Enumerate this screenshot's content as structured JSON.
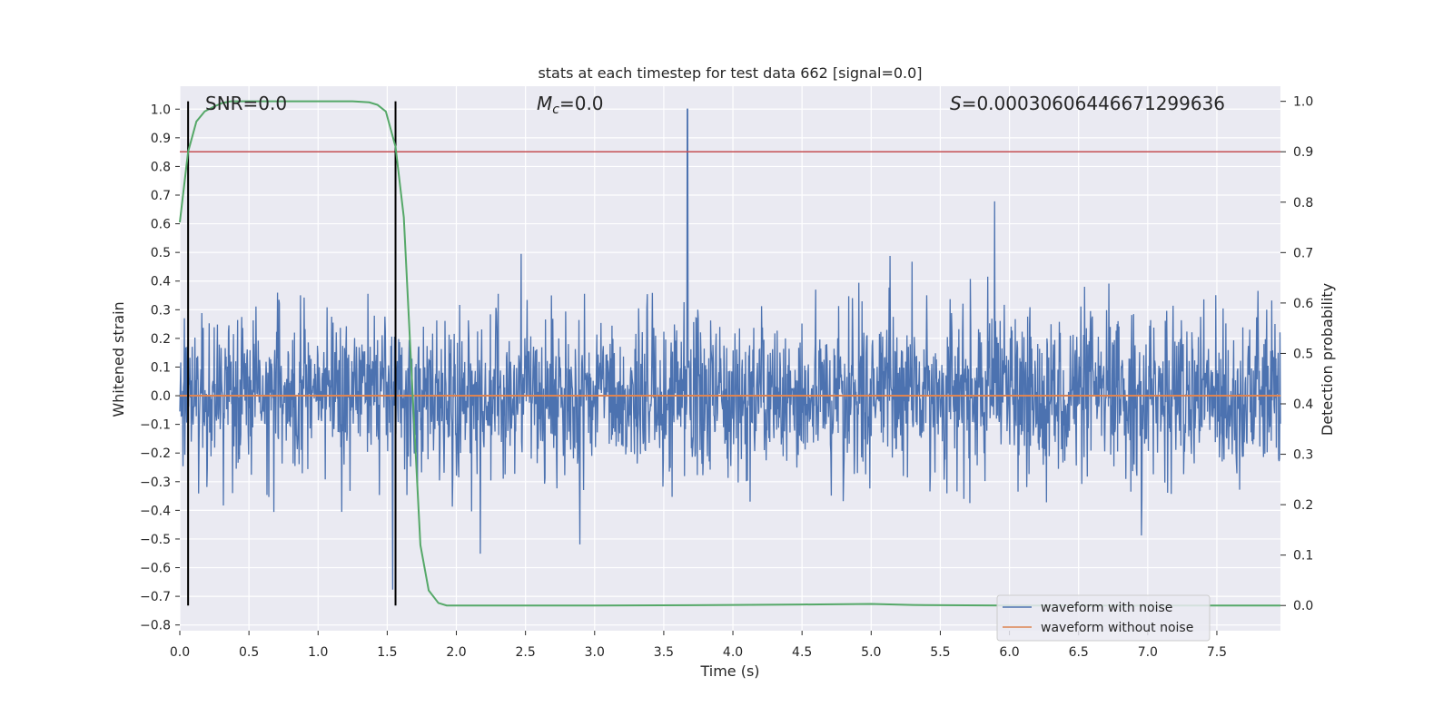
{
  "chart_data": {
    "type": "line",
    "title": "stats at each timestep for test data 662 [signal=0.0]",
    "xlabel": "Time (s)",
    "ylabel_left": "Whitened strain",
    "ylabel_right": "Detection probability",
    "xlim": [
      0.0,
      7.96
    ],
    "ylim_left": [
      -0.82,
      1.08
    ],
    "ylim_right": [
      -0.05,
      1.03
    ],
    "x_ticks": [
      0.0,
      0.5,
      1.0,
      1.5,
      2.0,
      2.5,
      3.0,
      3.5,
      4.0,
      4.5,
      5.0,
      5.5,
      6.0,
      6.5,
      7.0,
      7.5
    ],
    "x_tick_labels": [
      "0.0",
      "0.5",
      "1.0",
      "1.5",
      "2.0",
      "2.5",
      "3.0",
      "3.5",
      "4.0",
      "4.5",
      "5.0",
      "5.5",
      "6.0",
      "6.5",
      "7.0",
      "7.5"
    ],
    "y_left_ticks": [
      1.0,
      0.9,
      0.8,
      0.7,
      0.6,
      0.5,
      0.4,
      0.3,
      0.2,
      0.1,
      0.0,
      -0.1,
      -0.2,
      -0.3,
      -0.4,
      -0.5,
      -0.6,
      -0.7,
      -0.8
    ],
    "y_left_tick_labels": [
      "1.0",
      "0.9",
      "0.8",
      "0.7",
      "0.6",
      "0.5",
      "0.4",
      "0.3",
      "0.2",
      "0.1",
      "0.0",
      "−0.1",
      "−0.2",
      "−0.3",
      "−0.4",
      "−0.5",
      "−0.6",
      "−0.7",
      "−0.8"
    ],
    "y_right_ticks": [
      1.0,
      0.9,
      0.8,
      0.7,
      0.6,
      0.5,
      0.4,
      0.3,
      0.2,
      0.1,
      0.0
    ],
    "y_right_tick_labels": [
      "1.0",
      "0.9",
      "0.8",
      "0.7",
      "0.6",
      "0.5",
      "0.4",
      "0.3",
      "0.2",
      "0.1",
      "0.0"
    ],
    "annotations": {
      "snr": "SNR=0.0",
      "mc_symbol": "M",
      "mc_sub": "c",
      "mc_value": "=0.0",
      "s_symbol": "S",
      "s_value": "=0.0003060644667129963​6"
    },
    "threshold_right": 0.9,
    "vertical_lines_x": [
      0.06,
      1.56
    ],
    "series": [
      {
        "name": "waveform with noise",
        "color": "#4c72b0",
        "axis": "left",
        "kind": "noise",
        "n_points": 2400,
        "envelope_sigma": 0.14,
        "peak_x": 3.67,
        "peak_y": 1.0,
        "min_y": -0.74
      },
      {
        "name": "waveform without noise",
        "color": "#dd8452",
        "axis": "left",
        "kind": "flat",
        "value": 0.0
      },
      {
        "name": "detection probability",
        "color": "#55a868",
        "axis": "right",
        "x": [
          0.0,
          0.06,
          0.12,
          0.18,
          0.25,
          0.31,
          0.37,
          0.5,
          0.75,
          1.0,
          1.25,
          1.37,
          1.43,
          1.49,
          1.56,
          1.62,
          1.68,
          1.74,
          1.8,
          1.87,
          1.93,
          2.0,
          2.5,
          3.0,
          4.0,
          4.5,
          5.0,
          5.3,
          6.0,
          7.0,
          7.96
        ],
        "y": [
          0.76,
          0.9,
          0.96,
          0.98,
          0.99,
          0.997,
          1.0,
          1.0,
          1.0,
          1.0,
          1.0,
          0.998,
          0.993,
          0.98,
          0.91,
          0.77,
          0.44,
          0.12,
          0.03,
          0.005,
          0.0,
          0.0,
          0.0,
          0.0,
          0.001,
          0.002,
          0.003,
          0.001,
          0.0,
          0.0,
          0.0
        ]
      }
    ],
    "legend": {
      "placement": "bottom-right",
      "entries": [
        "waveform with noise",
        "waveform without noise"
      ]
    },
    "colors": {
      "plot_bg": "#eaeaf2",
      "grid": "#ffffff",
      "threshold": "#c44e52",
      "vline": "#000000"
    }
  }
}
